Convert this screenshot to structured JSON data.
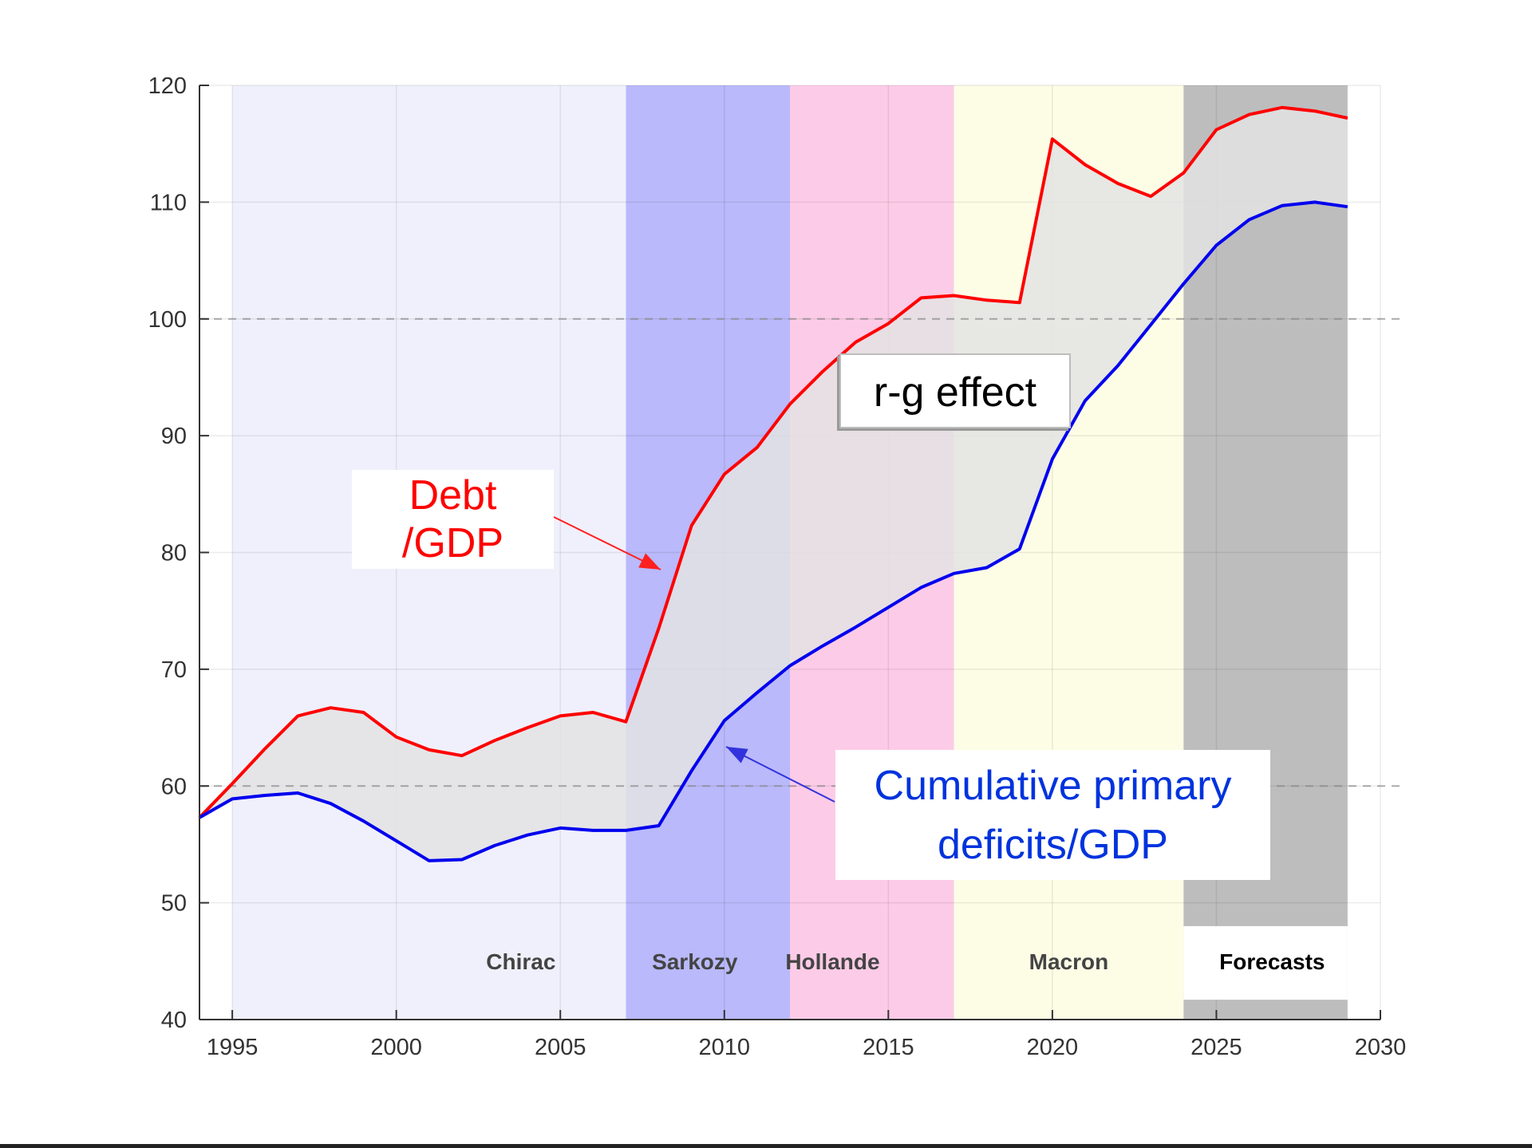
{
  "chart_data": {
    "type": "area",
    "xlabel": "",
    "ylabel": "",
    "xlim": [
      1994,
      2030
    ],
    "ylim": [
      40,
      120
    ],
    "xticks": [
      1995,
      2000,
      2005,
      2010,
      2015,
      2020,
      2025,
      2030
    ],
    "yticks": [
      40,
      50,
      60,
      70,
      80,
      90,
      100,
      110,
      120
    ],
    "grid": true,
    "reference_lines": [
      60,
      100
    ],
    "periods": [
      {
        "name": "",
        "start": 1995,
        "end": 2007,
        "color": "#f0f0fc"
      },
      {
        "name": "Chirac",
        "label_x": 2003.8,
        "start": 1995,
        "end": 2007,
        "color": "#f0f0fc"
      },
      {
        "name": "Sarkozy",
        "label_x": 2009.1,
        "start": 2007,
        "end": 2012,
        "color": "#b9b9fb"
      },
      {
        "name": "Hollande",
        "label_x": 2013.3,
        "start": 2012,
        "end": 2017,
        "color": "#fccbe7"
      },
      {
        "name": "Macron",
        "label_x": 2020.5,
        "start": 2017,
        "end": 2024,
        "color": "#fdfde6"
      },
      {
        "name": "Forecasts",
        "label_x": 2026.7,
        "start": 2024,
        "end": 2029,
        "color": "#bdbdbd"
      }
    ],
    "x": [
      1994,
      1995,
      1996,
      1997,
      1998,
      1999,
      2000,
      2001,
      2002,
      2003,
      2004,
      2005,
      2006,
      2007,
      2008,
      2009,
      2010,
      2011,
      2012,
      2013,
      2014,
      2015,
      2016,
      2017,
      2018,
      2019,
      2020,
      2021,
      2022,
      2023,
      2024,
      2025,
      2026,
      2027,
      2028,
      2029
    ],
    "series": [
      {
        "name": "Debt /GDP",
        "color": "#ff0000",
        "values": [
          57.3,
          60.2,
          63.2,
          66.0,
          66.7,
          66.3,
          64.2,
          63.1,
          62.6,
          63.9,
          65.0,
          66.0,
          66.3,
          65.5,
          73.5,
          82.3,
          86.7,
          89.0,
          92.7,
          95.5,
          98.0,
          99.6,
          101.8,
          102.0,
          101.6,
          101.4,
          115.4,
          113.2,
          111.6,
          110.5,
          112.5,
          116.2,
          117.5,
          118.1,
          117.8,
          117.2
        ]
      },
      {
        "name": "Cumulative primary deficits/GDP",
        "color": "#0000ee",
        "values": [
          57.3,
          58.9,
          59.2,
          59.4,
          58.5,
          57.0,
          55.3,
          53.6,
          53.7,
          54.9,
          55.8,
          56.4,
          56.2,
          56.2,
          56.6,
          61.3,
          65.6,
          68.0,
          70.3,
          72.0,
          73.6,
          75.3,
          77.0,
          78.2,
          78.7,
          80.3,
          88.0,
          93.0,
          96.0,
          99.5,
          103.0,
          106.3,
          108.5,
          109.7,
          110.0,
          109.6
        ]
      }
    ],
    "annotations": [
      {
        "text_lines": [
          "Debt",
          "/GDP"
        ],
        "color": "#ff0000"
      },
      {
        "text": "r-g effect",
        "color": "#000000"
      },
      {
        "text_lines": [
          "Cumulative primary",
          "deficits/GDP"
        ],
        "color": "#0033dd"
      }
    ]
  }
}
